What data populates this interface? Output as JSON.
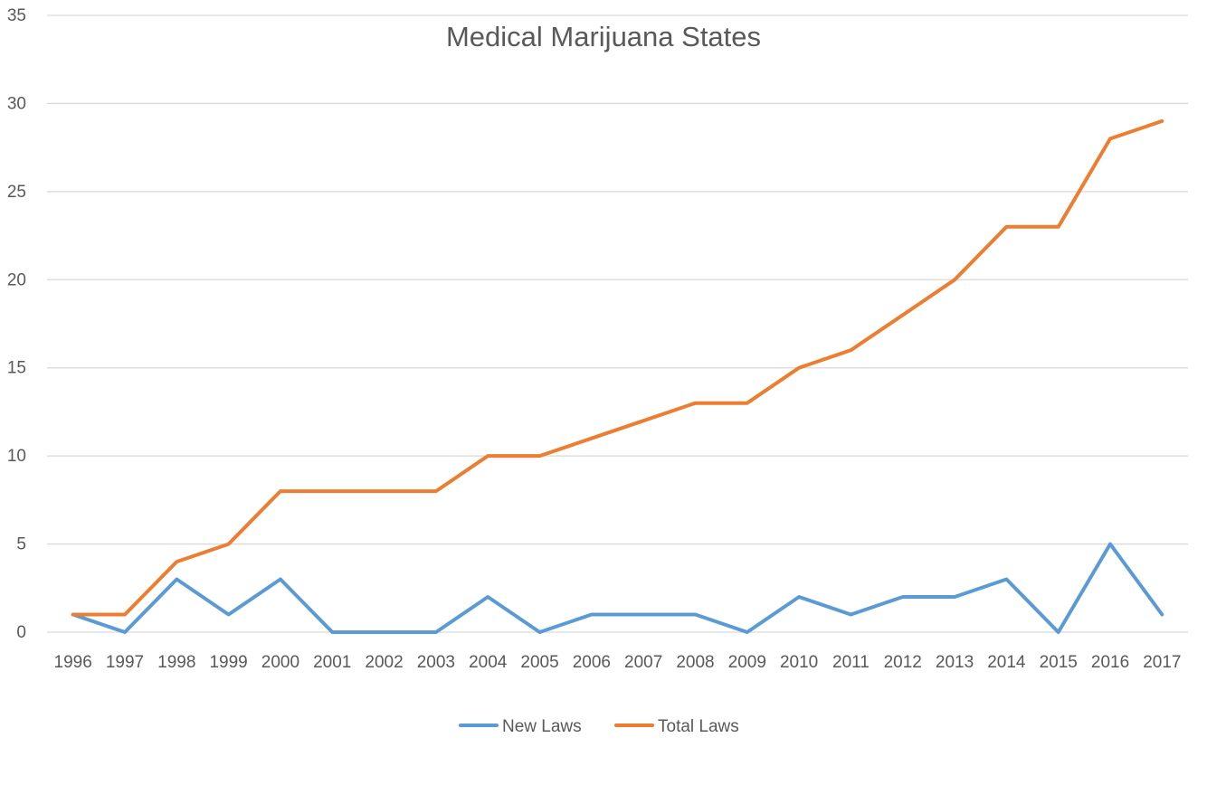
{
  "chart_data": {
    "type": "line",
    "title": "Medical Marijuana States",
    "xlabel": "",
    "ylabel": "",
    "categories": [
      "1996",
      "1997",
      "1998",
      "1999",
      "2000",
      "2001",
      "2002",
      "2003",
      "2004",
      "2005",
      "2006",
      "2007",
      "2008",
      "2009",
      "2010",
      "2011",
      "2012",
      "2013",
      "2014",
      "2015",
      "2016",
      "2017"
    ],
    "y_ticks": [
      "0",
      "5",
      "10",
      "15",
      "20",
      "25",
      "30",
      "35"
    ],
    "ylim": [
      0,
      35
    ],
    "grid": true,
    "legend_position": "bottom",
    "series": [
      {
        "name": "New Laws",
        "color": "#5b9bd5",
        "values": [
          1,
          0,
          3,
          1,
          3,
          0,
          0,
          0,
          2,
          0,
          1,
          1,
          1,
          0,
          2,
          1,
          2,
          2,
          3,
          0,
          5,
          1
        ]
      },
      {
        "name": "Total Laws",
        "color": "#ed7d31",
        "values": [
          1,
          1,
          4,
          5,
          8,
          8,
          8,
          8,
          10,
          10,
          11,
          12,
          13,
          13,
          15,
          16,
          18,
          20,
          23,
          23,
          28,
          29
        ]
      }
    ]
  }
}
